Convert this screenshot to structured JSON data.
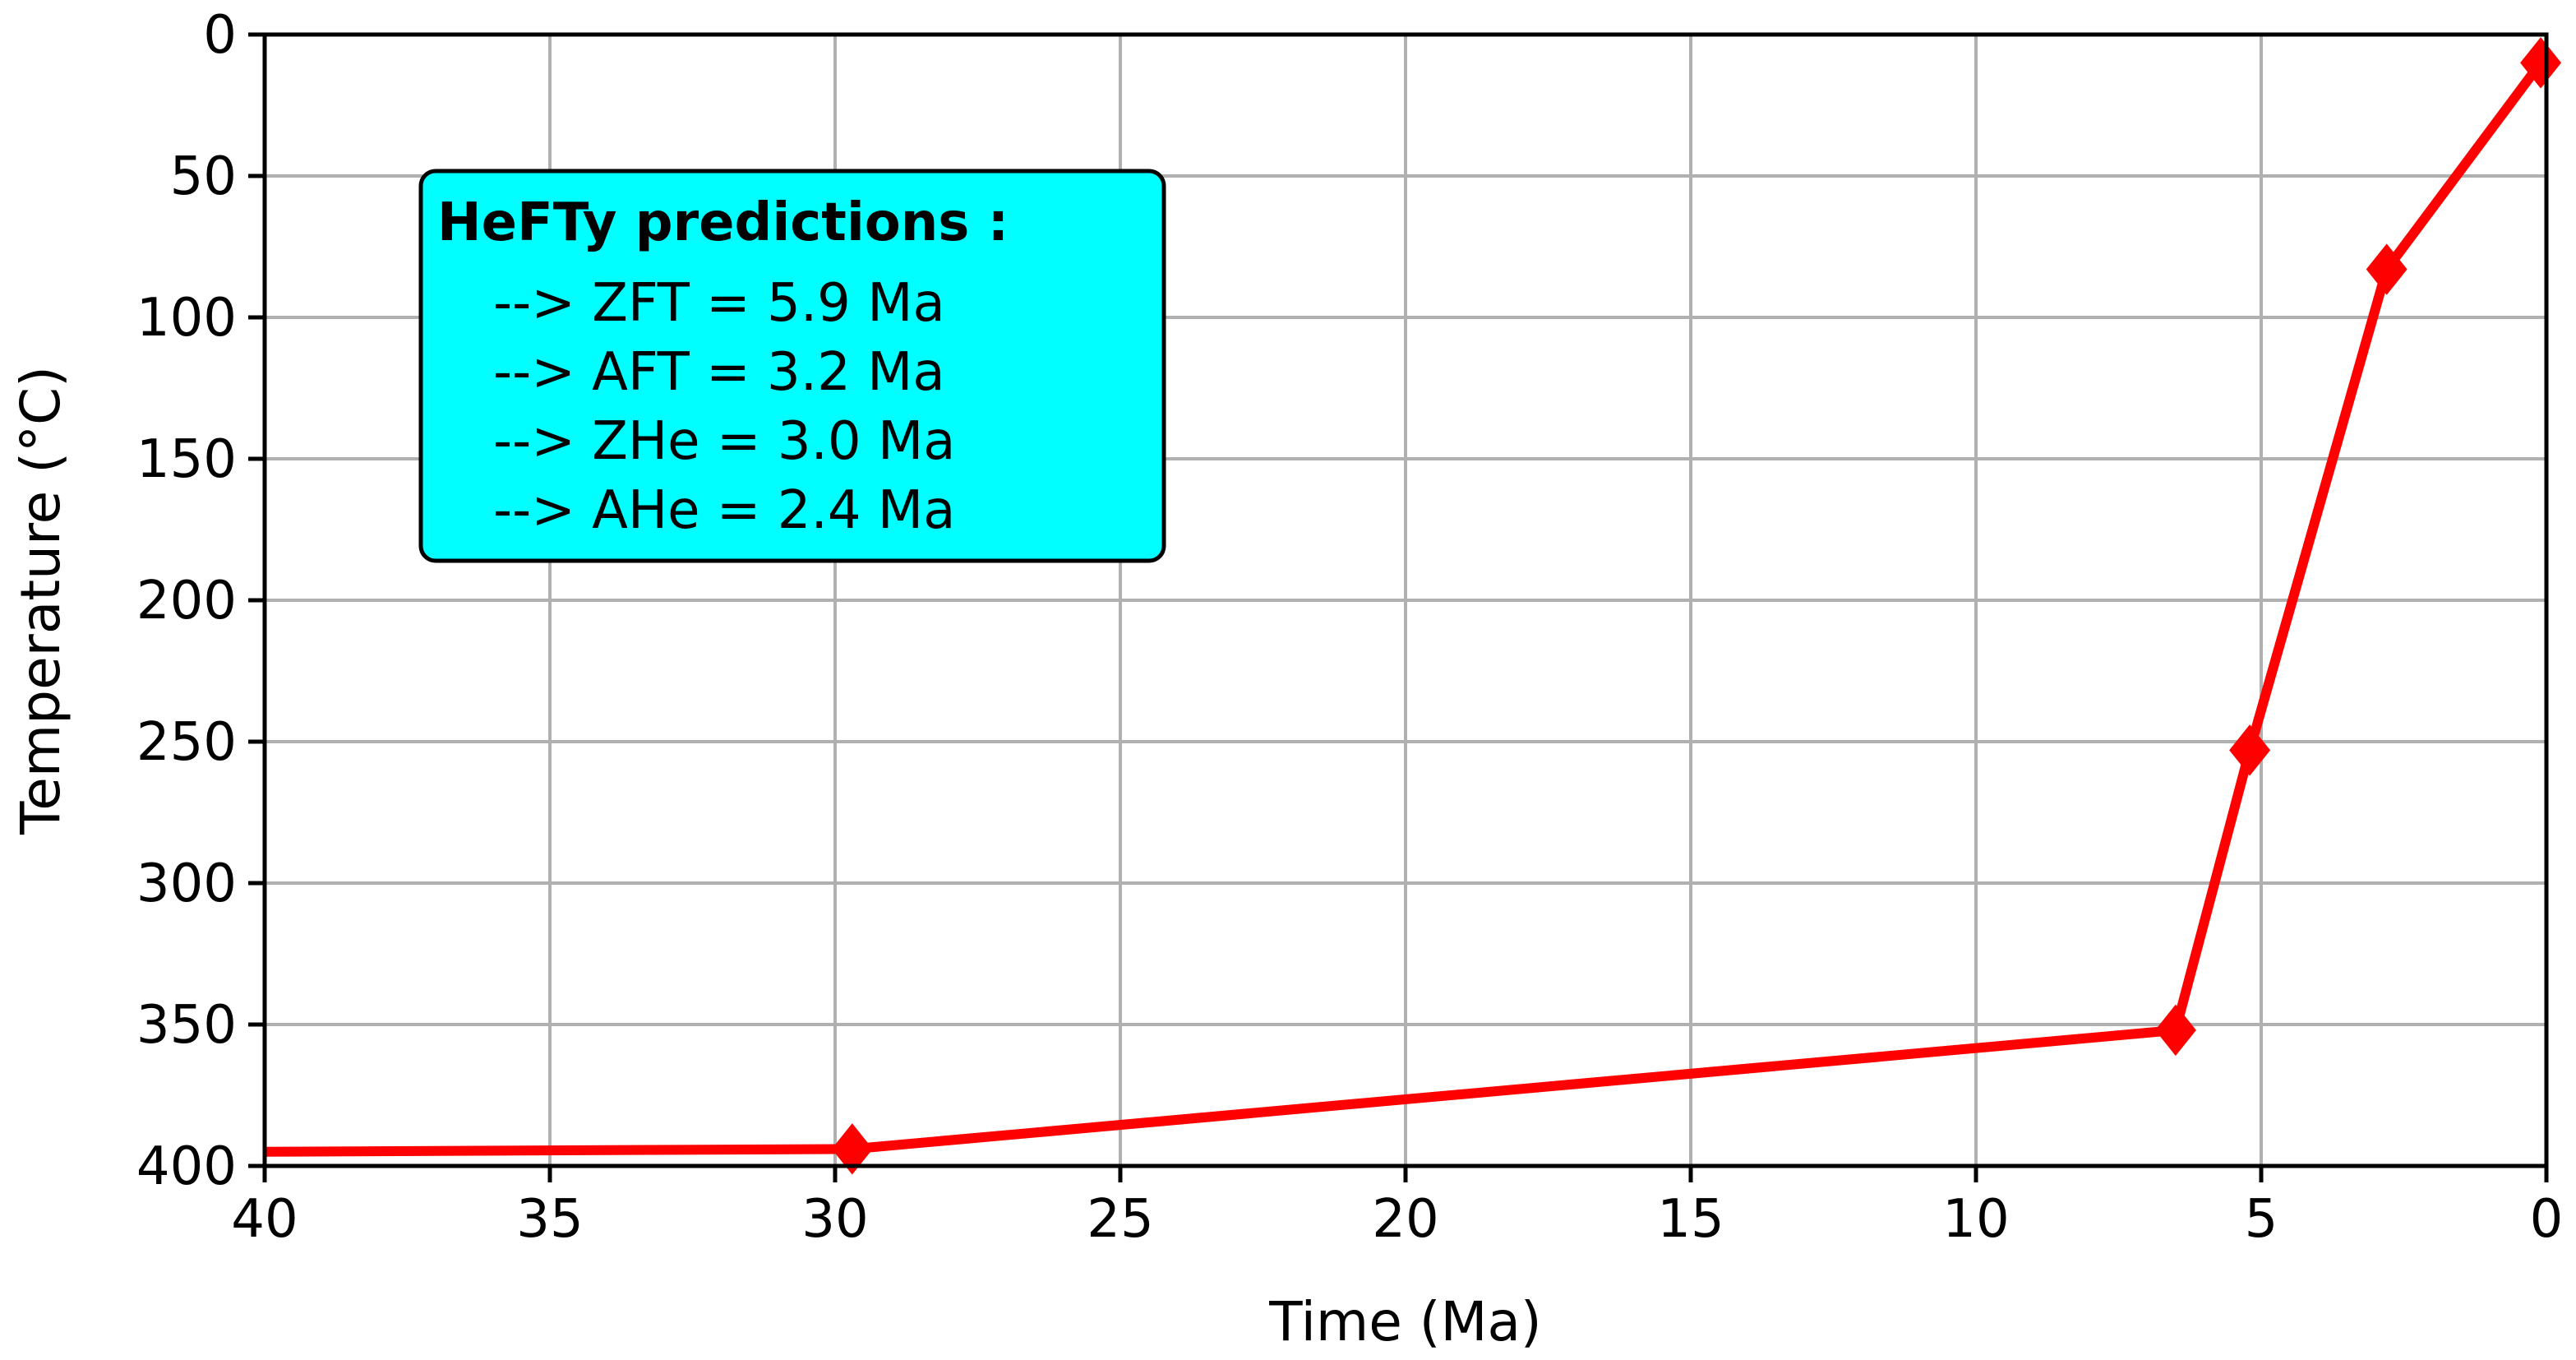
{
  "chart_data": {
    "type": "line",
    "title": "",
    "xlabel": "Time (Ma)",
    "ylabel": "Temperature (°C)",
    "xlim": [
      40,
      0
    ],
    "ylim": [
      400,
      0
    ],
    "x_inverted": true,
    "y_inverted": true,
    "grid": true,
    "x_ticks": [
      40,
      35,
      30,
      25,
      20,
      15,
      10,
      5,
      0
    ],
    "y_ticks": [
      0,
      50,
      100,
      150,
      200,
      250,
      300,
      350,
      400
    ],
    "series": [
      {
        "x": [
          40,
          29.7,
          6.5,
          5.2,
          2.8,
          0.1
        ],
        "y": [
          395,
          394,
          352,
          253,
          83,
          10
        ],
        "marker_x": [
          29.7,
          6.5,
          5.2,
          2.8,
          0.1
        ],
        "marker_y": [
          394,
          352,
          253,
          83,
          10
        ],
        "color": "#ff0000",
        "marker": "diamond"
      }
    ],
    "annotation": {
      "title": "HeFTy  predictions :",
      "lines": [
        "--> ZFT = 5.9 Ma",
        "--> AFT = 3.2 Ma",
        "--> ZHe = 3.0 Ma",
        "--> AHe = 2.4 Ma"
      ],
      "background": "#00ffff",
      "placement": "upper-left"
    }
  }
}
